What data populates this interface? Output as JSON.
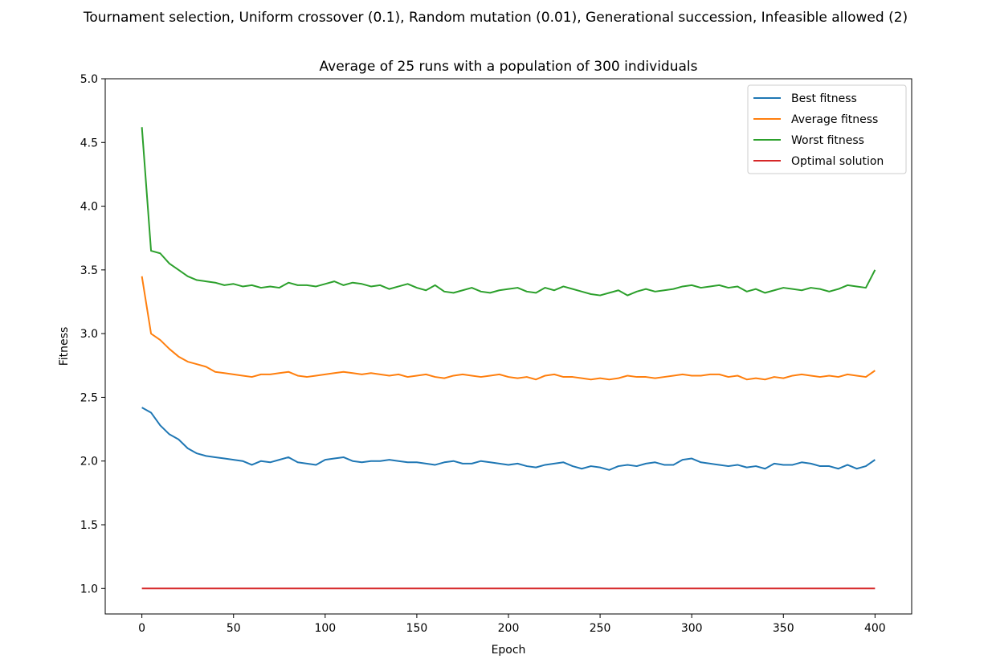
{
  "figure": {
    "suptitle": "Tournament selection, Uniform crossover (0.1), Random mutation (0.01), Generational succession, Infeasible allowed (2)"
  },
  "chart_data": {
    "type": "line",
    "title": "Average of 25 runs with a population of 300 individuals",
    "xlabel": "Epoch",
    "ylabel": "Fitness",
    "xlim": [
      -20,
      420
    ],
    "ylim": [
      0.8,
      5.0
    ],
    "xticks": [
      0,
      50,
      100,
      150,
      200,
      250,
      300,
      350,
      400
    ],
    "yticks": [
      1.0,
      1.5,
      2.0,
      2.5,
      3.0,
      3.5,
      4.0,
      4.5,
      5.0
    ],
    "ytick_labels": [
      "1.0",
      "1.5",
      "2.0",
      "2.5",
      "3.0",
      "3.5",
      "4.0",
      "4.5",
      "5.0"
    ],
    "grid": false,
    "legend_position": "top-right",
    "x": {
      "start": 0,
      "end": 400,
      "step": 5
    },
    "series": [
      {
        "name": "Best fitness",
        "color": "#1f77b4",
        "values": [
          2.42,
          2.38,
          2.28,
          2.21,
          2.17,
          2.1,
          2.06,
          2.04,
          2.03,
          2.02,
          2.01,
          2.0,
          1.97,
          2.0,
          1.99,
          2.01,
          2.03,
          1.99,
          1.98,
          1.97,
          2.01,
          2.02,
          2.03,
          2.0,
          1.99,
          2.0,
          2.0,
          2.01,
          2.0,
          1.99,
          1.99,
          1.98,
          1.97,
          1.99,
          2.0,
          1.98,
          1.98,
          2.0,
          1.99,
          1.98,
          1.97,
          1.98,
          1.96,
          1.95,
          1.97,
          1.98,
          1.99,
          1.96,
          1.94,
          1.96,
          1.95,
          1.93,
          1.96,
          1.97,
          1.96,
          1.98,
          1.99,
          1.97,
          1.97,
          2.01,
          2.02,
          1.99,
          1.98,
          1.97,
          1.96,
          1.97,
          1.95,
          1.96,
          1.94,
          1.98,
          1.97,
          1.97,
          1.99,
          1.98,
          1.96,
          1.96,
          1.94,
          1.97,
          1.94,
          1.96,
          2.01
        ]
      },
      {
        "name": "Average fitness",
        "color": "#ff7f0e",
        "values": [
          3.45,
          3.0,
          2.95,
          2.88,
          2.82,
          2.78,
          2.76,
          2.74,
          2.7,
          2.69,
          2.68,
          2.67,
          2.66,
          2.68,
          2.68,
          2.69,
          2.7,
          2.67,
          2.66,
          2.67,
          2.68,
          2.69,
          2.7,
          2.69,
          2.68,
          2.69,
          2.68,
          2.67,
          2.68,
          2.66,
          2.67,
          2.68,
          2.66,
          2.65,
          2.67,
          2.68,
          2.67,
          2.66,
          2.67,
          2.68,
          2.66,
          2.65,
          2.66,
          2.64,
          2.67,
          2.68,
          2.66,
          2.66,
          2.65,
          2.64,
          2.65,
          2.64,
          2.65,
          2.67,
          2.66,
          2.66,
          2.65,
          2.66,
          2.67,
          2.68,
          2.67,
          2.67,
          2.68,
          2.68,
          2.66,
          2.67,
          2.64,
          2.65,
          2.64,
          2.66,
          2.65,
          2.67,
          2.68,
          2.67,
          2.66,
          2.67,
          2.66,
          2.68,
          2.67,
          2.66,
          2.71
        ]
      },
      {
        "name": "Worst fitness",
        "color": "#2ca02c",
        "values": [
          4.62,
          3.65,
          3.63,
          3.55,
          3.5,
          3.45,
          3.42,
          3.41,
          3.4,
          3.38,
          3.39,
          3.37,
          3.38,
          3.36,
          3.37,
          3.36,
          3.4,
          3.38,
          3.38,
          3.37,
          3.39,
          3.41,
          3.38,
          3.4,
          3.39,
          3.37,
          3.38,
          3.35,
          3.37,
          3.39,
          3.36,
          3.34,
          3.38,
          3.33,
          3.32,
          3.34,
          3.36,
          3.33,
          3.32,
          3.34,
          3.35,
          3.36,
          3.33,
          3.32,
          3.36,
          3.34,
          3.37,
          3.35,
          3.33,
          3.31,
          3.3,
          3.32,
          3.34,
          3.3,
          3.33,
          3.35,
          3.33,
          3.34,
          3.35,
          3.37,
          3.38,
          3.36,
          3.37,
          3.38,
          3.36,
          3.37,
          3.33,
          3.35,
          3.32,
          3.34,
          3.36,
          3.35,
          3.34,
          3.36,
          3.35,
          3.33,
          3.35,
          3.38,
          3.37,
          3.36,
          3.5
        ]
      },
      {
        "name": "Optimal solution",
        "color": "#d62728",
        "values": [
          1.0,
          1.0,
          1.0,
          1.0,
          1.0,
          1.0,
          1.0,
          1.0,
          1.0,
          1.0,
          1.0,
          1.0,
          1.0,
          1.0,
          1.0,
          1.0,
          1.0,
          1.0,
          1.0,
          1.0,
          1.0,
          1.0,
          1.0,
          1.0,
          1.0,
          1.0,
          1.0,
          1.0,
          1.0,
          1.0,
          1.0,
          1.0,
          1.0,
          1.0,
          1.0,
          1.0,
          1.0,
          1.0,
          1.0,
          1.0,
          1.0,
          1.0,
          1.0,
          1.0,
          1.0,
          1.0,
          1.0,
          1.0,
          1.0,
          1.0,
          1.0,
          1.0,
          1.0,
          1.0,
          1.0,
          1.0,
          1.0,
          1.0,
          1.0,
          1.0,
          1.0,
          1.0,
          1.0,
          1.0,
          1.0,
          1.0,
          1.0,
          1.0,
          1.0,
          1.0,
          1.0,
          1.0,
          1.0,
          1.0,
          1.0,
          1.0,
          1.0,
          1.0,
          1.0,
          1.0,
          1.0
        ]
      }
    ]
  }
}
